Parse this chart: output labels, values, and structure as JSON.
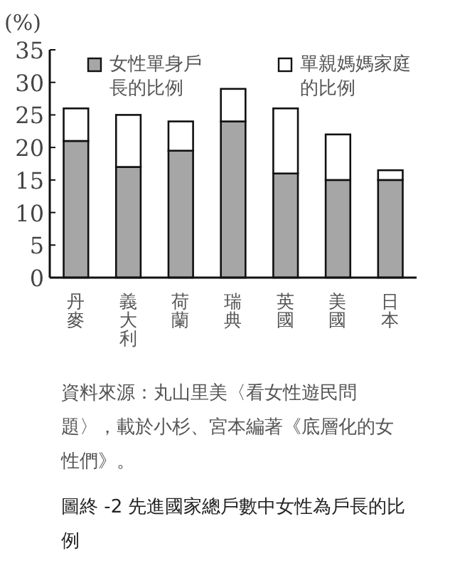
{
  "chart_data": {
    "type": "bar",
    "stacked": true,
    "title": "圖終 -2 先進國家總戶數中女性為戶長的比例",
    "ylabel": "(%)",
    "annotations": [
      "資料來源：丸山里美〈看女性遊民問題〉，載於小杉、宮本編著《底層化的女性們》。"
    ],
    "categories": [
      "丹麥",
      "義大利",
      "荷蘭",
      "瑞典",
      "英國",
      "美國",
      "日本"
    ],
    "series": [
      {
        "name": "女性單身戶長的比例",
        "color": "#a6a6a6",
        "values": [
          21,
          17,
          19.5,
          24,
          16,
          15,
          15
        ]
      },
      {
        "name": "單親媽媽家庭的比例",
        "color": "#ffffff",
        "values": [
          5,
          8,
          4.5,
          5,
          10,
          7,
          1.5
        ]
      }
    ],
    "ylim": [
      0,
      35
    ],
    "yticks": [
      0,
      5,
      10,
      15,
      20,
      25,
      30,
      35
    ],
    "legend": "top",
    "grid": false
  }
}
